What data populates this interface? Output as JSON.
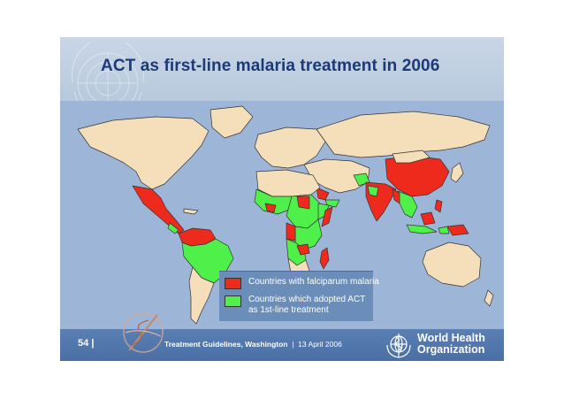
{
  "title": "ACT as first-line malaria treatment in 2006",
  "legend": {
    "items": [
      {
        "label": "Countries with falciparum malaria",
        "color": "#ee2a1c"
      },
      {
        "label_line1": "Countries which adopted ACT",
        "label_line2": "as 1st-line treatment",
        "color": "#4ff04a"
      }
    ]
  },
  "map_colors": {
    "ocean": "#9db5d6",
    "no_malaria": "#f5dfba",
    "falciparum": "#ee2a1c",
    "act_adopted": "#4ff04a",
    "border": "#333333"
  },
  "footer": {
    "page_number": "54",
    "separator": "|",
    "event": "Treatment Guidelines, Washington",
    "date_separator": "|",
    "date": "13 April 2006",
    "org_line1": "World Health",
    "org_line2": "Organization"
  }
}
